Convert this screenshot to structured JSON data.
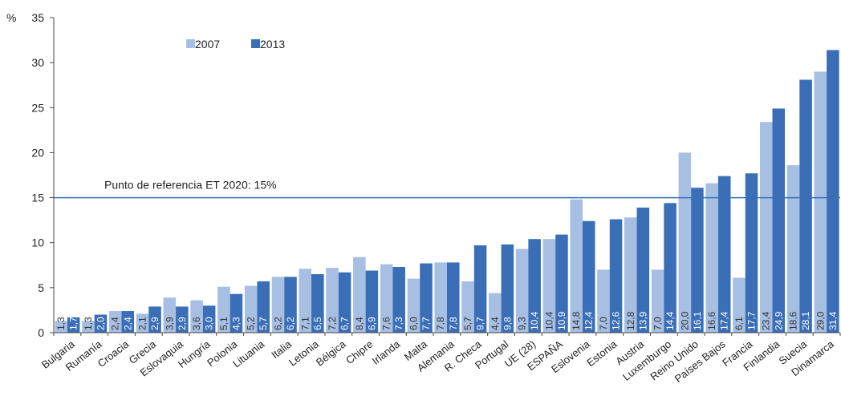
{
  "chart_data": {
    "type": "bar",
    "ylabel": "%",
    "ylim": [
      0,
      35
    ],
    "yticks": [
      0,
      5,
      10,
      15,
      20,
      25,
      30,
      35
    ],
    "grid": false,
    "legend_position": "top-left",
    "categories": [
      "Bulgaria",
      "Rumanía",
      "Croacia",
      "Grecia",
      "Eslovaquia",
      "Hungría",
      "Polonia",
      "Lituania",
      "Italia",
      "Letonia",
      "Bélgica",
      "Chipre",
      "Irlanda",
      "Malta",
      "Alemania",
      "R. Checa",
      "Portugal",
      "UE (28)",
      "ESPAÑA",
      "Eslovenia",
      "Estonia",
      "Austria",
      "Luxemburgo",
      "Reino Unido",
      "Países Bajos",
      "Francia",
      "Finlandia",
      "Suecia",
      "Dinamarca"
    ],
    "series": [
      {
        "name": "2007",
        "color": "#a6bfe3",
        "values": [
          1.3,
          1.3,
          2.4,
          2.1,
          3.9,
          3.6,
          5.1,
          5.2,
          6.2,
          7.1,
          7.2,
          8.4,
          7.6,
          6.0,
          7.8,
          5.7,
          4.4,
          9.3,
          10.4,
          14.8,
          7.0,
          12.8,
          7.0,
          20.0,
          16.6,
          6.1,
          23.4,
          18.6,
          29.0
        ],
        "labels": [
          "1,3",
          "1,3",
          "2,4",
          "2,1",
          "3,9",
          "3,6",
          "5,1",
          "5,2",
          "6,2",
          "7,1",
          "7,2",
          "8,4",
          "7,6",
          "6,0",
          "7,8",
          "5,7",
          "4,4",
          "9,3",
          "10,4",
          "14,8",
          "7,0",
          "12,8",
          "7,0",
          "20,0",
          "16,6",
          "6,1",
          "23,4",
          "18,6",
          "29,0"
        ]
      },
      {
        "name": "2013",
        "color": "#3a6fb7",
        "values": [
          1.7,
          2.0,
          2.4,
          2.9,
          2.9,
          3.0,
          4.3,
          5.7,
          6.2,
          6.5,
          6.7,
          6.9,
          7.3,
          7.7,
          7.8,
          9.7,
          9.8,
          10.4,
          10.9,
          12.4,
          12.6,
          13.9,
          14.4,
          16.1,
          17.4,
          17.7,
          24.9,
          28.1,
          31.4
        ],
        "labels": [
          "1,7",
          "2,0",
          "2,4",
          "2,9",
          "2,9",
          "3,0",
          "4,3",
          "5,7",
          "6,2",
          "6,5",
          "6,7",
          "6,9",
          "7,3",
          "7,7",
          "7,8",
          "9,7",
          "9,8",
          "10,4",
          "10,9",
          "12,4",
          "12,6",
          "13,9",
          "14,4",
          "16,1",
          "17,4",
          "17,7",
          "24,9",
          "28,1",
          "31,4"
        ]
      }
    ],
    "reference_line": {
      "value": 15,
      "label": "Punto de referencia ET 2020: 15%",
      "color": "#3a6fb7"
    },
    "axis_color": "#444444"
  }
}
